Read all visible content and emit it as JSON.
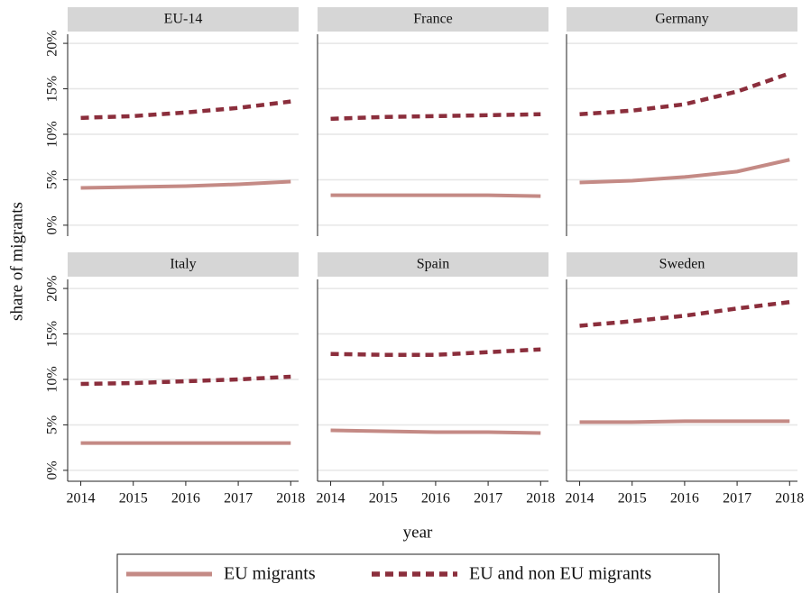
{
  "chart_data": [
    {
      "type": "line",
      "title": "EU-14",
      "ylabel": "share of migrants",
      "xlabel": "year",
      "legend": "bottom",
      "grid": true,
      "x": [
        2014,
        2015,
        2016,
        2017,
        2018
      ],
      "xlim": [
        2013.75,
        2018.15
      ],
      "ylim": [
        -1.2,
        21
      ],
      "yticks": [
        {
          "value": 0,
          "label": "0%"
        },
        {
          "value": 5,
          "label": "5%"
        },
        {
          "value": 10,
          "label": "10%"
        },
        {
          "value": 15,
          "label": "15%"
        },
        {
          "value": 20,
          "label": "20%"
        }
      ],
      "series": [
        {
          "name": "EU migrants",
          "color": "#c48a85",
          "values": [
            4.1,
            4.2,
            4.3,
            4.5,
            4.8
          ]
        },
        {
          "name": "EU and non EU migrants",
          "color": "#8b2e3c",
          "values": [
            11.8,
            12.0,
            12.4,
            12.9,
            13.6
          ]
        }
      ]
    },
    {
      "type": "line",
      "title": "France",
      "grid": true,
      "x": [
        2014,
        2015,
        2016,
        2017,
        2018
      ],
      "xlim": [
        2013.75,
        2018.15
      ],
      "ylim": [
        -1.2,
        21
      ],
      "yticks": [
        0,
        5,
        10,
        15,
        20
      ],
      "series": [
        {
          "color": "#c48a85",
          "values": [
            3.3,
            3.3,
            3.3,
            3.3,
            3.2
          ]
        },
        {
          "color": "#8b2e3c",
          "values": [
            11.7,
            11.9,
            12.0,
            12.1,
            12.2
          ]
        }
      ]
    },
    {
      "type": "line",
      "title": "Germany",
      "grid": true,
      "x": [
        2014,
        2015,
        2016,
        2017,
        2018
      ],
      "xlim": [
        2013.75,
        2018.15
      ],
      "ylim": [
        -1.2,
        21
      ],
      "yticks": [
        0,
        5,
        10,
        15,
        20
      ],
      "series": [
        {
          "color": "#c48a85",
          "values": [
            4.7,
            4.9,
            5.3,
            5.9,
            7.2
          ]
        },
        {
          "color": "#8b2e3c",
          "values": [
            12.2,
            12.6,
            13.3,
            14.7,
            16.7
          ]
        }
      ]
    },
    {
      "type": "line",
      "title": "Italy",
      "grid": true,
      "x": [
        2014,
        2015,
        2016,
        2017,
        2018
      ],
      "xlim": [
        2013.75,
        2018.15
      ],
      "ylim": [
        -1.2,
        21
      ],
      "yticks": [
        {
          "value": 0,
          "label": "0%"
        },
        {
          "value": 5,
          "label": "5%"
        },
        {
          "value": 10,
          "label": "10%"
        },
        {
          "value": 15,
          "label": "15%"
        },
        {
          "value": 20,
          "label": "20%"
        }
      ],
      "xticks": [
        2014,
        2015,
        2016,
        2017,
        2018
      ],
      "series": [
        {
          "color": "#c48a85",
          "values": [
            3.0,
            3.0,
            3.0,
            3.0,
            3.0
          ]
        },
        {
          "color": "#8b2e3c",
          "values": [
            9.5,
            9.6,
            9.8,
            10.0,
            10.3
          ]
        }
      ]
    },
    {
      "type": "line",
      "title": "Spain",
      "grid": true,
      "x": [
        2014,
        2015,
        2016,
        2017,
        2018
      ],
      "xlim": [
        2013.75,
        2018.15
      ],
      "ylim": [
        -1.2,
        21
      ],
      "yticks": [
        0,
        5,
        10,
        15,
        20
      ],
      "xticks": [
        2014,
        2015,
        2016,
        2017,
        2018
      ],
      "series": [
        {
          "color": "#c48a85",
          "values": [
            4.4,
            4.3,
            4.2,
            4.2,
            4.1
          ]
        },
        {
          "color": "#8b2e3c",
          "values": [
            12.8,
            12.7,
            12.7,
            13.0,
            13.3
          ]
        }
      ]
    },
    {
      "type": "line",
      "title": "Sweden",
      "grid": true,
      "x": [
        2014,
        2015,
        2016,
        2017,
        2018
      ],
      "xlim": [
        2013.75,
        2018.15
      ],
      "ylim": [
        -1.2,
        21
      ],
      "yticks": [
        0,
        5,
        10,
        15,
        20
      ],
      "xticks": [
        2014,
        2015,
        2016,
        2017,
        2018
      ],
      "series": [
        {
          "color": "#c48a85",
          "values": [
            5.3,
            5.3,
            5.4,
            5.4,
            5.4
          ]
        },
        {
          "color": "#8b2e3c",
          "values": [
            15.9,
            16.4,
            17.0,
            17.8,
            18.5
          ]
        }
      ]
    }
  ]
}
